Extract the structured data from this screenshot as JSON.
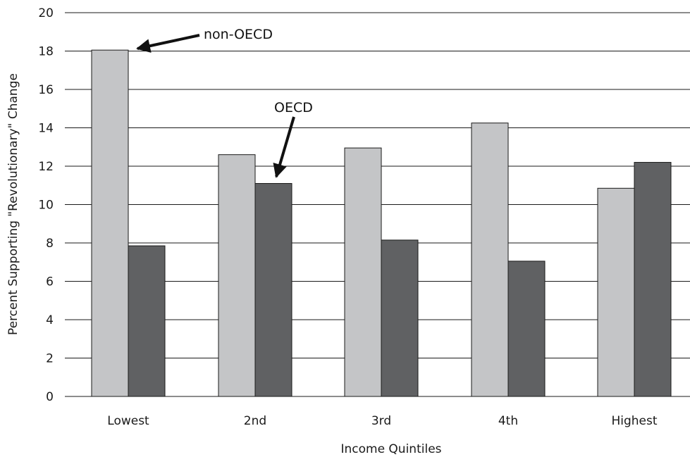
{
  "chart_data": {
    "type": "bar",
    "categories": [
      "Lowest",
      "2nd",
      "3rd",
      "4th",
      "Highest"
    ],
    "series": [
      {
        "name": "non-OECD",
        "values": [
          18.05,
          12.6,
          12.95,
          14.25,
          10.85
        ],
        "color": "#c4c5c7"
      },
      {
        "name": "OECD",
        "values": [
          7.85,
          11.1,
          8.15,
          7.05,
          12.2
        ],
        "color": "#606163"
      }
    ],
    "title": "",
    "xlabel": "Income Quintiles",
    "ylabel": "Percent Supporting \"Revolutionary\" Change",
    "ylim": [
      0,
      20
    ],
    "yticks": [
      0,
      2,
      4,
      6,
      8,
      10,
      12,
      14,
      16,
      18,
      20
    ],
    "grid": true,
    "legend": "none",
    "annotations": [
      {
        "text": "non-OECD",
        "target_series": 0,
        "target_category": 0
      },
      {
        "text": "OECD",
        "target_series": 1,
        "target_category": 1
      }
    ]
  }
}
